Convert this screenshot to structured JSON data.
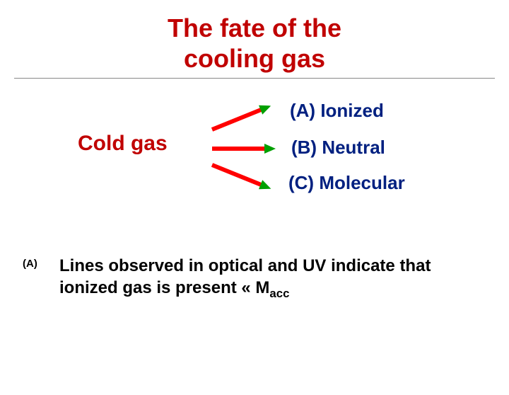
{
  "title_line1": "The fate of the",
  "title_line2": "cooling gas",
  "source_label": "Cold gas",
  "options": {
    "a": "(A) Ionized",
    "b": "(B) Neutral",
    "c": "(C) Molecular"
  },
  "bullet": {
    "marker": "(A)",
    "text_before": "Lines observed in optical and UV indicate that ionized gas is present « M",
    "subscript": "acc"
  },
  "colors": {
    "title": "#c00000",
    "option": "#002080",
    "arrow_shaft": "#ff0000",
    "arrow_head": "#00a000"
  }
}
